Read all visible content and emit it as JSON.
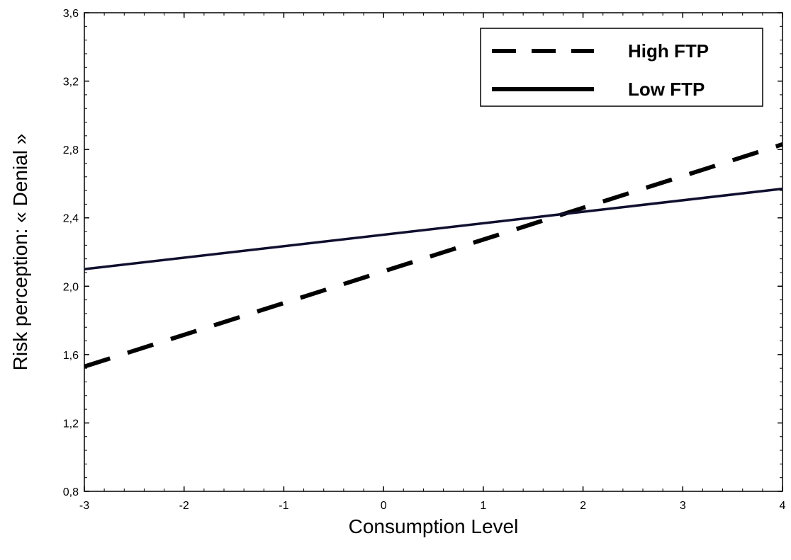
{
  "chart_data": {
    "type": "line",
    "xlabel": "Consumption Level",
    "ylabel": "Risk perception: « Denial »",
    "xlim": [
      -3,
      4
    ],
    "ylim": [
      0.8,
      3.6
    ],
    "x_ticks": [
      "-3",
      "-2",
      "-1",
      "0",
      "1",
      "2",
      "3",
      "4"
    ],
    "y_ticks": [
      "0,8",
      "1,2",
      "1,6",
      "2,0",
      "2,4",
      "2,8",
      "3,2",
      "3,6"
    ],
    "grid": false,
    "legend_position": "top-right",
    "series": [
      {
        "name": "High FTP",
        "style": "dashed",
        "color": "#000000",
        "x": [
          -3,
          4
        ],
        "y": [
          1.53,
          2.83
        ]
      },
      {
        "name": "Low FTP",
        "style": "solid",
        "color": "#0f0f2e",
        "x": [
          -3,
          4
        ],
        "y": [
          2.1,
          2.57
        ]
      }
    ]
  }
}
